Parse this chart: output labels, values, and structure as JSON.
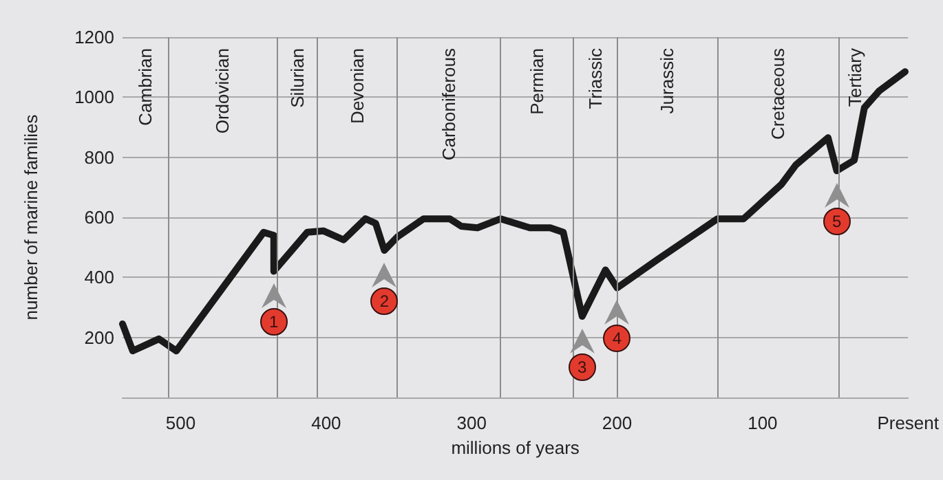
{
  "chart_data": {
    "type": "line",
    "xlabel": "millions of years",
    "ylabel": "number of marine families",
    "x": [
      540,
      533,
      515,
      503,
      443,
      436,
      436,
      413,
      402,
      388,
      373,
      366,
      360,
      351,
      333,
      315,
      307,
      296,
      280,
      260,
      246,
      237,
      224,
      208,
      200,
      172,
      131,
      113,
      87,
      77,
      55,
      49,
      37,
      30,
      20,
      2
    ],
    "series": [
      {
        "color": "#1a1a1a",
        "values": [
          245,
          155,
          195,
          155,
          550,
          540,
          420,
          550,
          555,
          525,
          595,
          580,
          490,
          535,
          595,
          595,
          570,
          565,
          595,
          565,
          565,
          550,
          270,
          425,
          365,
          460,
          595,
          595,
          710,
          775,
          865,
          755,
          790,
          965,
          1020,
          1085
        ]
      }
    ],
    "xlim": [
      540,
      0
    ],
    "xticks": [
      500,
      400,
      300,
      200,
      100,
      {
        "value": 0,
        "label": "Present"
      }
    ],
    "ylim": [
      0,
      1200
    ],
    "yticks": [
      200,
      400,
      600,
      800,
      1000,
      1200
    ],
    "grid": "y",
    "line_style": "solid",
    "ref_lines": [
      {
        "axis": "x",
        "value": 509
      },
      {
        "axis": "x",
        "value": 434
      },
      {
        "axis": "x",
        "value": 406
      },
      {
        "axis": "x",
        "value": 351
      },
      {
        "axis": "x",
        "value": 280
      },
      {
        "axis": "x",
        "value": 230
      },
      {
        "axis": "x",
        "value": 200
      },
      {
        "axis": "x",
        "value": 131
      },
      {
        "axis": "x",
        "value": 48
      }
    ],
    "annotations": [
      "Cambrian",
      "Ordovician",
      "Silurian",
      "Devonian",
      "Carboniferous",
      "Permian",
      "Triassic",
      "Jurassic",
      "Cretaceous",
      "Tertiary",
      {
        "text": "1",
        "x": 436,
        "y": 420
      },
      {
        "text": "2",
        "x": 360,
        "y": 490
      },
      {
        "text": "3",
        "x": 224,
        "y": 270
      },
      {
        "text": "4",
        "x": 200,
        "y": 365
      },
      {
        "text": "5",
        "x": 49,
        "y": 755
      }
    ]
  }
}
